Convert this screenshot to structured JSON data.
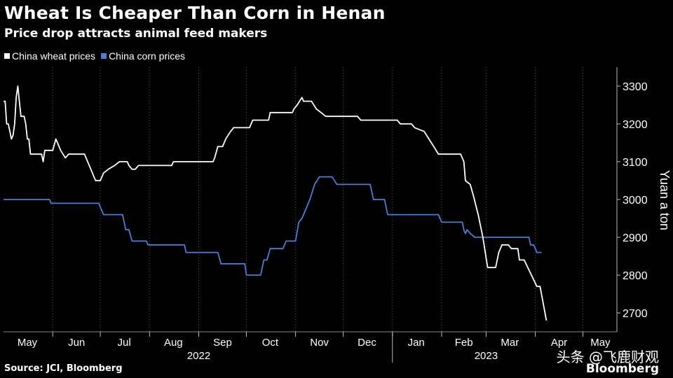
{
  "title": "Wheat Is Cheaper Than Corn in Henan",
  "subtitle": "Price drop attracts animal feed makers",
  "source": "Source: JCI, Bloomberg",
  "watermark": "头条 @飞鹿财观",
  "brand": "Bloomberg",
  "chart_data": {
    "type": "line",
    "ylabel": "Yuan a ton",
    "ylim": [
      2650,
      3350
    ],
    "y_ticks": [
      2700,
      2800,
      2900,
      3000,
      3100,
      3200,
      3300
    ],
    "x_start": "2022-05-01",
    "x_end": "2023-05-18",
    "month_labels": [
      {
        "label": "May",
        "date": "2022-05-16"
      },
      {
        "label": "Jun",
        "date": "2022-06-16"
      },
      {
        "label": "Jul",
        "date": "2022-07-16"
      },
      {
        "label": "Aug",
        "date": "2022-08-16"
      },
      {
        "label": "Sep",
        "date": "2022-09-16"
      },
      {
        "label": "Oct",
        "date": "2022-10-16"
      },
      {
        "label": "Nov",
        "date": "2022-11-16"
      },
      {
        "label": "Dec",
        "date": "2022-12-16"
      },
      {
        "label": "Jan",
        "date": "2023-01-16"
      },
      {
        "label": "Feb",
        "date": "2023-02-15"
      },
      {
        "label": "Mar",
        "date": "2023-03-16"
      },
      {
        "label": "Apr",
        "date": "2023-04-16"
      },
      {
        "label": "May",
        "date": "2023-05-12"
      }
    ],
    "month_ticks": [
      "2022-06-01",
      "2022-07-01",
      "2022-08-01",
      "2022-09-01",
      "2022-10-01",
      "2022-11-01",
      "2022-12-01",
      "2023-01-01",
      "2023-02-01",
      "2023-03-01",
      "2023-04-01",
      "2023-05-01"
    ],
    "year_labels": [
      {
        "label": "2022",
        "date": "2022-09-01"
      },
      {
        "label": "2023",
        "date": "2023-03-01"
      }
    ],
    "year_divider": "2023-01-01",
    "series": [
      {
        "name": "China wheat prices",
        "color": "#ffffff",
        "points": [
          [
            "2022-05-01",
            3260
          ],
          [
            "2022-05-02",
            3260
          ],
          [
            "2022-05-03",
            3200
          ],
          [
            "2022-05-04",
            3200
          ],
          [
            "2022-05-05",
            3180
          ],
          [
            "2022-05-06",
            3160
          ],
          [
            "2022-05-07",
            3170
          ],
          [
            "2022-05-08",
            3200
          ],
          [
            "2022-05-09",
            3270
          ],
          [
            "2022-05-10",
            3300
          ],
          [
            "2022-05-11",
            3260
          ],
          [
            "2022-05-12",
            3220
          ],
          [
            "2022-05-14",
            3220
          ],
          [
            "2022-05-15",
            3200
          ],
          [
            "2022-05-16",
            3160
          ],
          [
            "2022-05-17",
            3160
          ],
          [
            "2022-05-18",
            3120
          ],
          [
            "2022-05-25",
            3120
          ],
          [
            "2022-05-26",
            3100
          ],
          [
            "2022-05-27",
            3130
          ],
          [
            "2022-06-01",
            3130
          ],
          [
            "2022-06-03",
            3160
          ],
          [
            "2022-06-05",
            3140
          ],
          [
            "2022-06-06",
            3130
          ],
          [
            "2022-06-09",
            3110
          ],
          [
            "2022-06-11",
            3120
          ],
          [
            "2022-06-21",
            3120
          ],
          [
            "2022-06-24",
            3090
          ],
          [
            "2022-06-26",
            3070
          ],
          [
            "2022-06-28",
            3050
          ],
          [
            "2022-07-01",
            3050
          ],
          [
            "2022-07-03",
            3070
          ],
          [
            "2022-07-06",
            3080
          ],
          [
            "2022-07-10",
            3090
          ],
          [
            "2022-07-13",
            3100
          ],
          [
            "2022-07-18",
            3100
          ],
          [
            "2022-07-19",
            3090
          ],
          [
            "2022-07-21",
            3080
          ],
          [
            "2022-07-23",
            3080
          ],
          [
            "2022-07-25",
            3090
          ],
          [
            "2022-08-15",
            3090
          ],
          [
            "2022-08-16",
            3100
          ],
          [
            "2022-09-10",
            3100
          ],
          [
            "2022-09-11",
            3110
          ],
          [
            "2022-09-13",
            3140
          ],
          [
            "2022-09-16",
            3140
          ],
          [
            "2022-09-18",
            3160
          ],
          [
            "2022-09-21",
            3180
          ],
          [
            "2022-09-23",
            3190
          ],
          [
            "2022-10-03",
            3190
          ],
          [
            "2022-10-05",
            3210
          ],
          [
            "2022-10-15",
            3210
          ],
          [
            "2022-10-16",
            3230
          ],
          [
            "2022-10-30",
            3230
          ],
          [
            "2022-10-31",
            3240
          ],
          [
            "2022-11-02",
            3250
          ],
          [
            "2022-11-05",
            3270
          ],
          [
            "2022-11-06",
            3260
          ],
          [
            "2022-11-11",
            3260
          ],
          [
            "2022-11-14",
            3240
          ],
          [
            "2022-11-17",
            3230
          ],
          [
            "2022-11-20",
            3220
          ],
          [
            "2022-12-10",
            3220
          ],
          [
            "2022-12-12",
            3210
          ],
          [
            "2023-01-04",
            3210
          ],
          [
            "2023-01-06",
            3200
          ],
          [
            "2023-01-13",
            3200
          ],
          [
            "2023-01-15",
            3190
          ],
          [
            "2023-01-21",
            3180
          ],
          [
            "2023-01-24",
            3160
          ],
          [
            "2023-01-27",
            3140
          ],
          [
            "2023-01-30",
            3120
          ],
          [
            "2023-02-13",
            3120
          ],
          [
            "2023-02-15",
            3100
          ],
          [
            "2023-02-16",
            3050
          ],
          [
            "2023-02-19",
            3040
          ],
          [
            "2023-02-21",
            3010
          ],
          [
            "2023-02-24",
            2960
          ],
          [
            "2023-02-27",
            2900
          ],
          [
            "2023-03-02",
            2820
          ],
          [
            "2023-03-07",
            2820
          ],
          [
            "2023-03-09",
            2860
          ],
          [
            "2023-03-11",
            2880
          ],
          [
            "2023-03-15",
            2880
          ],
          [
            "2023-03-17",
            2870
          ],
          [
            "2023-03-21",
            2870
          ],
          [
            "2023-03-22",
            2840
          ],
          [
            "2023-03-25",
            2840
          ],
          [
            "2023-04-02",
            2770
          ],
          [
            "2023-04-04",
            2770
          ],
          [
            "2023-04-08",
            2680
          ]
        ]
      },
      {
        "name": "China corn prices",
        "color": "#4a7fd4",
        "points": [
          [
            "2022-05-01",
            3000
          ],
          [
            "2022-05-30",
            3000
          ],
          [
            "2022-05-31",
            2990
          ],
          [
            "2022-06-30",
            2990
          ],
          [
            "2022-07-01",
            2980
          ],
          [
            "2022-07-03",
            2960
          ],
          [
            "2022-07-15",
            2960
          ],
          [
            "2022-07-17",
            2920
          ],
          [
            "2022-07-19",
            2920
          ],
          [
            "2022-07-21",
            2890
          ],
          [
            "2022-07-30",
            2890
          ],
          [
            "2022-07-31",
            2880
          ],
          [
            "2022-08-23",
            2880
          ],
          [
            "2022-08-24",
            2860
          ],
          [
            "2022-09-13",
            2860
          ],
          [
            "2022-09-15",
            2830
          ],
          [
            "2022-09-30",
            2830
          ],
          [
            "2022-10-01",
            2800
          ],
          [
            "2022-10-10",
            2800
          ],
          [
            "2022-10-12",
            2840
          ],
          [
            "2022-10-14",
            2840
          ],
          [
            "2022-10-16",
            2870
          ],
          [
            "2022-10-24",
            2870
          ],
          [
            "2022-10-26",
            2890
          ],
          [
            "2022-11-01",
            2890
          ],
          [
            "2022-11-03",
            2940
          ],
          [
            "2022-11-05",
            2950
          ],
          [
            "2022-11-10",
            3000
          ],
          [
            "2022-11-13",
            3040
          ],
          [
            "2022-11-16",
            3060
          ],
          [
            "2022-11-24",
            3060
          ],
          [
            "2022-11-27",
            3040
          ],
          [
            "2022-12-18",
            3040
          ],
          [
            "2022-12-20",
            3000
          ],
          [
            "2022-12-27",
            3000
          ],
          [
            "2022-12-29",
            2960
          ],
          [
            "2023-01-30",
            2960
          ],
          [
            "2023-02-01",
            2940
          ],
          [
            "2023-02-14",
            2940
          ],
          [
            "2023-02-15",
            2920
          ],
          [
            "2023-02-16",
            2910
          ],
          [
            "2023-02-17",
            2920
          ],
          [
            "2023-02-19",
            2910
          ],
          [
            "2023-02-22",
            2900
          ],
          [
            "2023-03-28",
            2900
          ],
          [
            "2023-03-29",
            2880
          ],
          [
            "2023-03-31",
            2880
          ],
          [
            "2023-04-02",
            2860
          ],
          [
            "2023-04-05",
            2860
          ]
        ]
      }
    ]
  }
}
